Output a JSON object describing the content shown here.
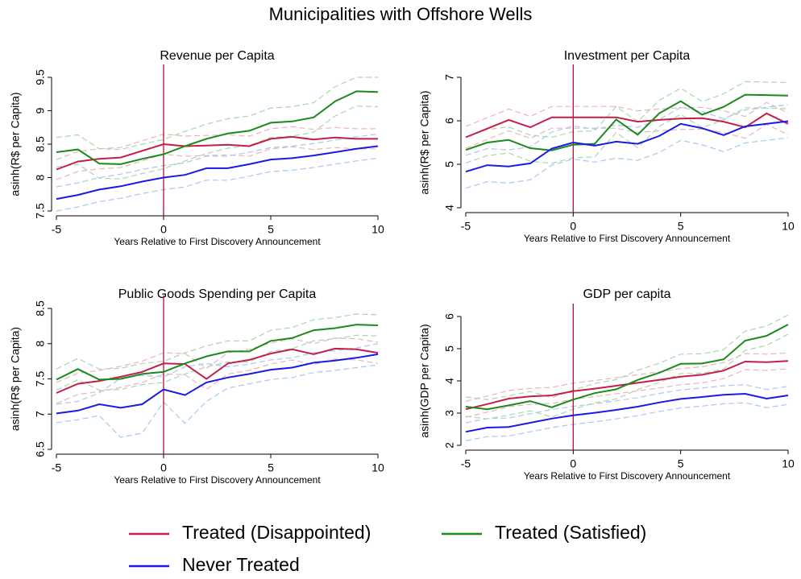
{
  "title": "Municipalities with Offshore Wells",
  "chart_data": [
    {
      "type": "line",
      "title": "Revenue per Capita",
      "x_label": "Years Relative to First Discovery Announcement",
      "y_label": "asinh(R$ per Capita)",
      "x": [
        -5,
        -4,
        -3,
        -2,
        -1,
        0,
        1,
        2,
        3,
        4,
        5,
        6,
        7,
        8,
        9,
        10
      ],
      "xlim": [
        -5,
        10
      ],
      "xticks": [
        -5,
        0,
        5,
        10
      ],
      "ylim": [
        7.5,
        9.5
      ],
      "yticks": [
        7.5,
        8,
        8.5,
        9,
        9.5
      ],
      "vline": 0,
      "vline_color": "#b0103a",
      "series": [
        {
          "name": "Treated (Disappointed)",
          "color": "#c41e4a",
          "ci_color": "#e8b4c0",
          "values": [
            8.12,
            8.24,
            8.28,
            8.3,
            8.4,
            8.5,
            8.47,
            8.48,
            8.49,
            8.47,
            8.58,
            8.61,
            8.57,
            8.6,
            8.58,
            8.58
          ],
          "ci_lower": [
            7.97,
            8.09,
            8.13,
            8.15,
            8.25,
            8.35,
            8.32,
            8.33,
            8.34,
            8.32,
            8.43,
            8.46,
            8.42,
            8.45,
            8.43,
            8.43
          ],
          "ci_upper": [
            8.27,
            8.39,
            8.43,
            8.45,
            8.55,
            8.65,
            8.62,
            8.63,
            8.64,
            8.62,
            8.73,
            8.76,
            8.72,
            8.75,
            8.73,
            8.73
          ]
        },
        {
          "name": "Treated (Satisfied)",
          "color": "#1a8a1a",
          "ci_color": "#a8d8a8",
          "values": [
            8.38,
            8.42,
            8.21,
            8.2,
            8.28,
            8.35,
            8.47,
            8.58,
            8.66,
            8.7,
            8.82,
            8.84,
            8.9,
            9.14,
            9.29,
            9.28
          ],
          "ci_lower": [
            8.16,
            8.2,
            7.99,
            7.98,
            8.06,
            8.13,
            8.25,
            8.36,
            8.44,
            8.48,
            8.6,
            8.62,
            8.68,
            8.92,
            9.07,
            9.06
          ],
          "ci_upper": [
            8.6,
            8.64,
            8.43,
            8.42,
            8.5,
            8.57,
            8.69,
            8.8,
            8.88,
            8.92,
            9.04,
            9.06,
            9.12,
            9.36,
            9.5,
            9.5
          ]
        },
        {
          "name": "Never Treated",
          "color": "#1a1ae6",
          "ci_color": "#a8c8f0",
          "values": [
            7.68,
            7.74,
            7.82,
            7.87,
            7.94,
            8.0,
            8.04,
            8.14,
            8.14,
            8.2,
            8.27,
            8.29,
            8.33,
            8.38,
            8.43,
            8.47
          ],
          "ci_lower": [
            7.5,
            7.56,
            7.64,
            7.69,
            7.76,
            7.82,
            7.86,
            7.96,
            7.96,
            8.02,
            8.09,
            8.11,
            8.15,
            8.2,
            8.25,
            8.29
          ],
          "ci_upper": [
            7.86,
            7.92,
            8.0,
            8.05,
            8.12,
            8.18,
            8.22,
            8.32,
            8.32,
            8.38,
            8.45,
            8.47,
            8.51,
            8.56,
            8.61,
            8.65
          ]
        }
      ]
    },
    {
      "type": "line",
      "title": "Investment per Capita",
      "x_label": "Years Relative to First Discovery Announcement",
      "y_label": "asinh(R$ per Capita)",
      "x": [
        -5,
        -4,
        -3,
        -2,
        -1,
        0,
        1,
        2,
        3,
        4,
        5,
        6,
        7,
        8,
        9,
        10
      ],
      "xlim": [
        -5,
        10
      ],
      "xticks": [
        -5,
        0,
        5,
        10
      ],
      "ylim": [
        4,
        7
      ],
      "yticks": [
        4,
        5,
        6,
        7
      ],
      "vline": 0,
      "vline_color": "#b0103a",
      "series": [
        {
          "name": "Treated (Disappointed)",
          "color": "#c41e4a",
          "ci_color": "#e8b4c0",
          "values": [
            5.62,
            5.82,
            6.02,
            5.85,
            6.08,
            6.08,
            6.08,
            6.08,
            5.98,
            6.02,
            6.05,
            6.06,
            5.98,
            5.85,
            6.17,
            5.93
          ],
          "ci_lower": [
            5.37,
            5.57,
            5.77,
            5.6,
            5.83,
            5.83,
            5.83,
            5.83,
            5.73,
            5.77,
            5.8,
            5.81,
            5.73,
            5.6,
            5.92,
            5.68
          ],
          "ci_upper": [
            5.87,
            6.07,
            6.27,
            6.1,
            6.33,
            6.33,
            6.33,
            6.33,
            6.23,
            6.27,
            6.3,
            6.31,
            6.23,
            6.1,
            6.42,
            6.18
          ]
        },
        {
          "name": "Treated (Satisfied)",
          "color": "#1a8a1a",
          "ci_color": "#a8d8a8",
          "values": [
            5.33,
            5.5,
            5.56,
            5.37,
            5.32,
            5.45,
            5.47,
            6.03,
            5.68,
            6.17,
            6.45,
            6.14,
            6.32,
            6.6,
            6.59,
            6.58
          ],
          "ci_lower": [
            5.03,
            5.2,
            5.26,
            5.07,
            5.02,
            5.15,
            5.17,
            5.73,
            5.38,
            5.87,
            6.15,
            5.84,
            6.02,
            6.3,
            6.29,
            6.28
          ],
          "ci_upper": [
            5.63,
            5.8,
            5.86,
            5.67,
            5.62,
            5.75,
            5.77,
            6.33,
            5.98,
            6.47,
            6.75,
            6.44,
            6.62,
            6.9,
            6.89,
            6.88
          ]
        },
        {
          "name": "Never Treated",
          "color": "#1a1ae6",
          "ci_color": "#a8c8f0",
          "values": [
            4.83,
            4.98,
            4.95,
            5.02,
            5.36,
            5.5,
            5.43,
            5.52,
            5.47,
            5.65,
            5.93,
            5.83,
            5.67,
            5.87,
            5.93,
            5.99
          ],
          "ci_lower": [
            4.45,
            4.6,
            4.57,
            4.64,
            4.98,
            5.12,
            5.05,
            5.14,
            5.09,
            5.27,
            5.55,
            5.45,
            5.29,
            5.49,
            5.55,
            5.61
          ],
          "ci_upper": [
            5.21,
            5.36,
            5.33,
            5.4,
            5.74,
            5.88,
            5.81,
            5.9,
            5.85,
            6.03,
            6.31,
            6.21,
            6.05,
            6.25,
            6.31,
            6.37
          ]
        }
      ]
    },
    {
      "type": "line",
      "title": "Public Goods Spending per Capita",
      "x_label": "Years Relative to First Discovery Announcement",
      "y_label": "asinh(R$ per Capita)",
      "x": [
        -5,
        -4,
        -3,
        -2,
        -1,
        0,
        1,
        2,
        3,
        4,
        5,
        6,
        7,
        8,
        9,
        10
      ],
      "xlim": [
        -5,
        10
      ],
      "xticks": [
        -5,
        0,
        5,
        10
      ],
      "ylim": [
        6.5,
        8.5
      ],
      "yticks": [
        6.5,
        7,
        7.5,
        8,
        8.5
      ],
      "vline": 0,
      "vline_color": "#b0103a",
      "series": [
        {
          "name": "Treated (Disappointed)",
          "color": "#c41e4a",
          "ci_color": "#e8b4c0",
          "values": [
            7.3,
            7.43,
            7.47,
            7.53,
            7.6,
            7.72,
            7.71,
            7.5,
            7.72,
            7.77,
            7.86,
            7.92,
            7.85,
            7.93,
            7.92,
            7.87
          ],
          "ci_lower": [
            7.15,
            7.28,
            7.32,
            7.38,
            7.45,
            7.57,
            7.56,
            7.35,
            7.57,
            7.62,
            7.71,
            7.77,
            7.7,
            7.78,
            7.77,
            7.72
          ],
          "ci_upper": [
            7.45,
            7.58,
            7.62,
            7.68,
            7.75,
            7.87,
            7.86,
            7.65,
            7.87,
            7.92,
            8.01,
            8.07,
            8.0,
            8.08,
            8.07,
            8.02
          ]
        },
        {
          "name": "Treated (Satisfied)",
          "color": "#1a8a1a",
          "ci_color": "#a8d8a8",
          "values": [
            7.49,
            7.64,
            7.49,
            7.5,
            7.57,
            7.6,
            7.72,
            7.82,
            7.89,
            7.89,
            8.04,
            8.08,
            8.19,
            8.22,
            8.27,
            8.26
          ],
          "ci_lower": [
            7.34,
            7.49,
            7.34,
            7.35,
            7.42,
            7.45,
            7.57,
            7.67,
            7.74,
            7.74,
            7.89,
            7.93,
            8.04,
            8.07,
            8.12,
            8.11
          ],
          "ci_upper": [
            7.64,
            7.79,
            7.64,
            7.65,
            7.72,
            7.75,
            7.87,
            7.97,
            8.04,
            8.04,
            8.19,
            8.23,
            8.34,
            8.37,
            8.42,
            8.41
          ]
        },
        {
          "name": "Never Treated",
          "color": "#1a1ae6",
          "ci_color": "#a8c8f0",
          "values": [
            7.01,
            7.05,
            7.14,
            7.09,
            7.14,
            7.35,
            7.27,
            7.45,
            7.52,
            7.57,
            7.63,
            7.66,
            7.73,
            7.76,
            7.8,
            7.85
          ],
          "ci_lower": [
            6.88,
            6.92,
            6.98,
            6.67,
            6.73,
            7.17,
            6.87,
            7.18,
            7.37,
            7.43,
            7.49,
            7.52,
            7.59,
            7.62,
            7.66,
            7.7
          ],
          "ci_upper": [
            7.14,
            7.18,
            7.3,
            7.51,
            7.55,
            7.53,
            7.67,
            7.72,
            7.67,
            7.71,
            7.77,
            7.8,
            7.87,
            7.9,
            7.94,
            8.0
          ]
        }
      ]
    },
    {
      "type": "line",
      "title": "GDP per capita",
      "x_label": "Years Relative to First Discovery Announcement",
      "y_label": "asinh(GDP per Capita)",
      "x": [
        -5,
        -4,
        -3,
        -2,
        -1,
        0,
        1,
        2,
        3,
        4,
        5,
        6,
        7,
        8,
        9,
        10
      ],
      "xlim": [
        -5,
        10
      ],
      "xticks": [
        -5,
        0,
        5,
        10
      ],
      "ylim": [
        2,
        6
      ],
      "yticks": [
        2,
        3,
        4,
        5,
        6
      ],
      "vline": 0,
      "vline_color": "#b0103a",
      "series": [
        {
          "name": "Treated (Disappointed)",
          "color": "#c41e4a",
          "ci_color": "#e8b4c0",
          "values": [
            3.12,
            3.28,
            3.45,
            3.52,
            3.55,
            3.68,
            3.76,
            3.85,
            3.94,
            4.03,
            4.13,
            4.19,
            4.32,
            4.6,
            4.58,
            4.62
          ],
          "ci_lower": [
            2.87,
            3.03,
            3.2,
            3.27,
            3.3,
            3.43,
            3.51,
            3.6,
            3.69,
            3.78,
            3.88,
            3.94,
            4.07,
            4.35,
            4.33,
            4.37
          ],
          "ci_upper": [
            3.37,
            3.53,
            3.7,
            3.77,
            3.8,
            3.93,
            4.01,
            4.1,
            4.19,
            4.28,
            4.38,
            4.44,
            4.57,
            4.85,
            4.83,
            4.87
          ]
        },
        {
          "name": "Treated (Satisfied)",
          "color": "#1a8a1a",
          "ci_color": "#a8d8a8",
          "values": [
            3.2,
            3.12,
            3.24,
            3.37,
            3.18,
            3.42,
            3.62,
            3.74,
            4.03,
            4.25,
            4.53,
            4.54,
            4.67,
            5.25,
            5.4,
            5.75
          ],
          "ci_lower": [
            2.9,
            2.82,
            2.94,
            3.07,
            2.88,
            3.12,
            3.32,
            3.44,
            3.73,
            3.95,
            4.23,
            4.24,
            4.37,
            4.95,
            5.1,
            5.45
          ],
          "ci_upper": [
            3.5,
            3.42,
            3.54,
            3.67,
            3.48,
            3.72,
            3.92,
            4.04,
            4.33,
            4.55,
            4.83,
            4.84,
            4.97,
            5.55,
            5.7,
            6.05
          ]
        },
        {
          "name": "Never Treated",
          "color": "#1a1ae6",
          "ci_color": "#a8c8f0",
          "values": [
            2.42,
            2.55,
            2.57,
            2.7,
            2.83,
            2.93,
            3.01,
            3.1,
            3.2,
            3.33,
            3.44,
            3.5,
            3.57,
            3.6,
            3.45,
            3.55
          ],
          "ci_lower": [
            2.14,
            2.27,
            2.29,
            2.42,
            2.55,
            2.65,
            2.73,
            2.82,
            2.92,
            3.05,
            3.16,
            3.22,
            3.29,
            3.32,
            3.17,
            3.27
          ],
          "ci_upper": [
            2.7,
            2.83,
            2.85,
            2.98,
            3.11,
            3.21,
            3.29,
            3.38,
            3.48,
            3.61,
            3.72,
            3.78,
            3.85,
            3.88,
            3.73,
            3.83
          ]
        }
      ]
    }
  ]
}
